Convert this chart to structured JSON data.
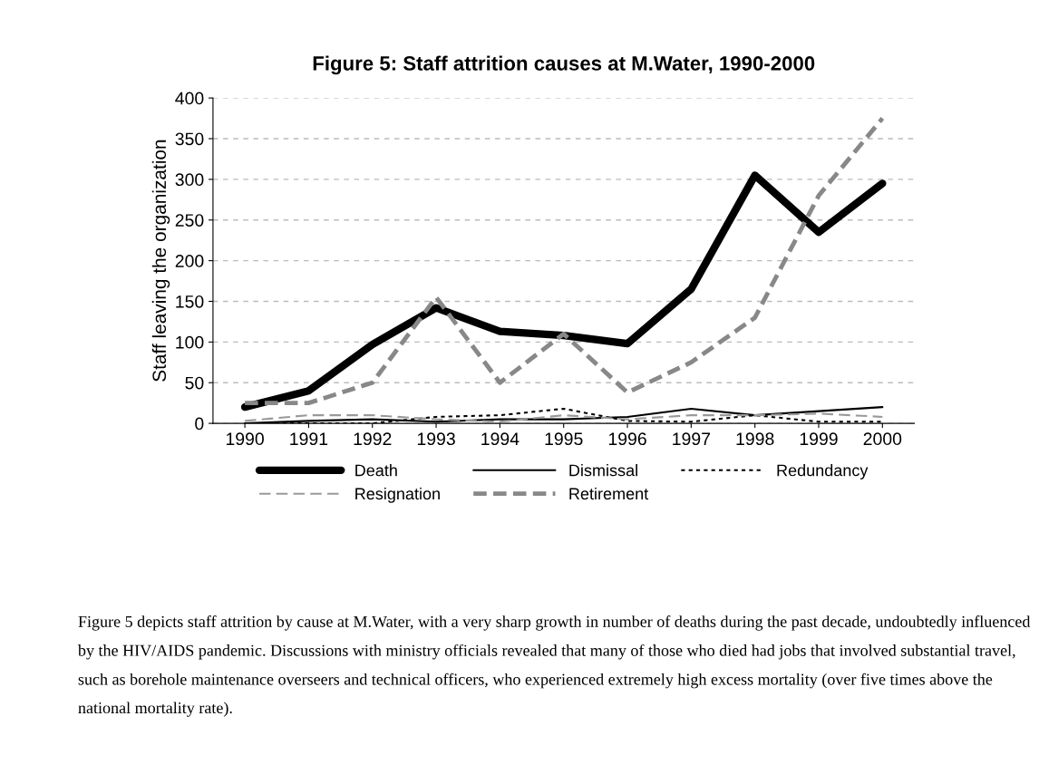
{
  "chart_data": {
    "type": "line",
    "title": "Figure 5: Staff attrition causes at M.Water, 1990-2000",
    "ylabel": "Staff leaving the organization",
    "categories": [
      "1990",
      "1991",
      "1992",
      "1993",
      "1994",
      "1995",
      "1996",
      "1997",
      "1998",
      "1999",
      "2000"
    ],
    "series": [
      {
        "name": "Death",
        "color": "#000000",
        "line_style": "solid",
        "values": [
          20,
          40,
          97,
          142,
          113,
          108,
          98,
          165,
          305,
          235,
          295
        ]
      },
      {
        "name": "Dismissal",
        "color": "#000000",
        "line_style": "solid",
        "values": [
          0,
          3,
          5,
          2,
          5,
          5,
          8,
          18,
          10,
          15,
          20
        ]
      },
      {
        "name": "Redundancy",
        "color": "#000000",
        "line_style": "dotted",
        "values": [
          0,
          0,
          0,
          8,
          10,
          18,
          3,
          2,
          10,
          2,
          2
        ]
      },
      {
        "name": "Resignation",
        "color": "#999999",
        "line_style": "dashed",
        "values": [
          3,
          10,
          10,
          5,
          2,
          10,
          5,
          10,
          10,
          12,
          8
        ]
      },
      {
        "name": "Retirement",
        "color": "#888888",
        "line_style": "dashed",
        "values": [
          25,
          25,
          50,
          155,
          50,
          110,
          38,
          75,
          130,
          280,
          375
        ]
      }
    ],
    "ylim": [
      0,
      400
    ],
    "yticks": [
      0,
      50,
      100,
      150,
      200,
      250,
      300,
      350,
      400
    ],
    "grid": "y",
    "legend": "bottom",
    "marker": "none",
    "annotations": [
      "Figure 5 depicts staff attrition by cause at M.Water, with a very sharp growth in number of deaths during the past decade, undoubtedly influenced by the HIV/AIDS pandemic. Discussions with ministry officials revealed that many of those who died had jobs that involved substantial travel, such as borehole maintenance overseers and technical officers, who experienced extremely high excess mortality (over five times above the national mortality rate)."
    ]
  }
}
